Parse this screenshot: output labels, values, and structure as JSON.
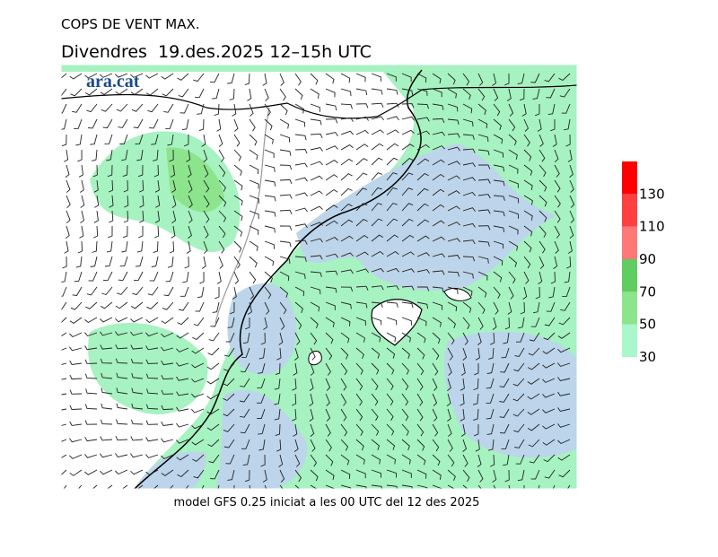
{
  "header": {
    "title": "COPS DE VENT MAX.",
    "subtitle": "Divendres  19.des.2025 12–15h UTC",
    "logo": "ara.cat"
  },
  "footer": "model GFS 0.25 iniciat a les 00 UTC del 12 des 2025",
  "legend": {
    "levels": [
      30,
      50,
      70,
      90,
      110,
      130
    ],
    "colors": [
      "#aaf7cc",
      "#8ce48c",
      "#5fcd5f",
      "#ff7878",
      "#ff4040",
      "#ff0000"
    ]
  }
}
